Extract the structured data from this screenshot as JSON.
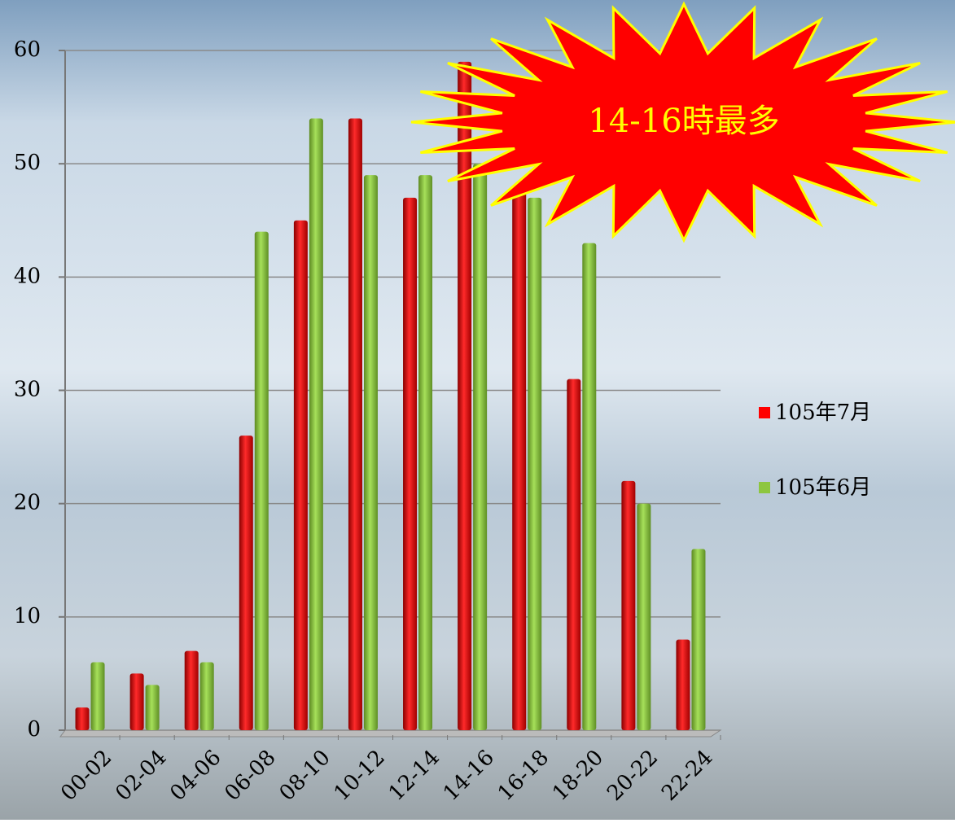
{
  "chart_data": {
    "type": "bar",
    "annotation": "14-16時最多",
    "categories": [
      "00-02",
      "02-04",
      "04-06",
      "06-08",
      "08-10",
      "10-12",
      "12-14",
      "14-16",
      "16-18",
      "18-20",
      "20-22",
      "22-24"
    ],
    "series": [
      {
        "name": "105年7月",
        "color": "#ff0000",
        "values": [
          2,
          5,
          7,
          26,
          45,
          54,
          47,
          59,
          48,
          31,
          22,
          8
        ]
      },
      {
        "name": "105年6月",
        "color": "#8dc63f",
        "values": [
          6,
          4,
          6,
          44,
          54,
          49,
          49,
          50,
          47,
          43,
          20,
          16
        ]
      }
    ],
    "ylim": [
      0,
      60
    ],
    "yticks": [
      0,
      10,
      20,
      30,
      40,
      50,
      60
    ],
    "grid": true
  }
}
